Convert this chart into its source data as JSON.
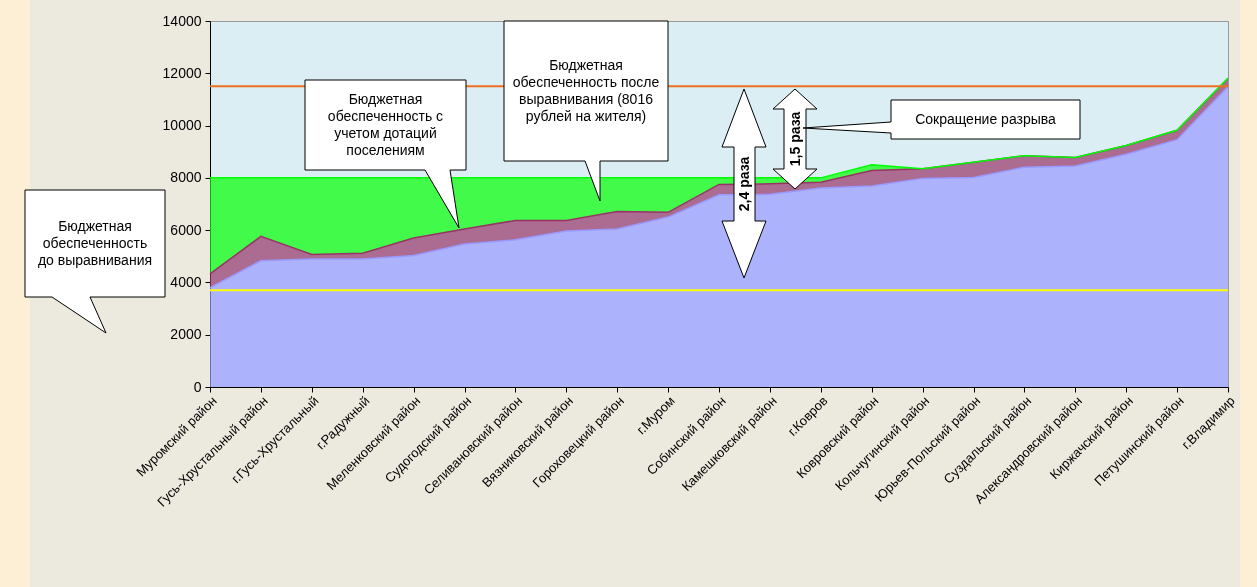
{
  "chart_data": {
    "type": "area",
    "stacked": true,
    "categories": [
      "Муромский район",
      "Гусь-Хрустальный район",
      "г.Гусь-Хрустальный",
      "г.Радужный",
      "Меленковский район",
      "Судогодский район",
      "Селивановский район",
      "Вязниковский район",
      "Гороховецкий район",
      "г.Муром",
      "Собинский район",
      "Камешковский район",
      "г.Ковров",
      "Ковровский район",
      "Кольчугинский район",
      "Юрьев-Польский район",
      "Суздальский район",
      "Александровский район",
      "Киржачский район",
      "Петушинский район",
      "г.Владимир"
    ],
    "series": [
      {
        "color": "#9999ff",
        "values": [
          3800,
          4830,
          4900,
          4900,
          5030,
          5470,
          5630,
          5970,
          6040,
          6500,
          7350,
          7370,
          7610,
          7690,
          7980,
          8010,
          8410,
          8450,
          8900,
          9460,
          11490
        ]
      },
      {
        "color": "#993366",
        "values": [
          530,
          930,
          170,
          220,
          670,
          570,
          740,
          400,
          670,
          180,
          400,
          400,
          220,
          590,
          370,
          590,
          440,
          330,
          340,
          360,
          320
        ]
      },
      {
        "color": "#00ff00",
        "values": [
          3670,
          2240,
          2930,
          2880,
          2300,
          1960,
          1630,
          1630,
          1290,
          1320,
          250,
          230,
          170,
          220,
          0,
          0,
          0,
          0,
          0,
          0,
          0
        ]
      }
    ],
    "ylim": [
      0,
      14000
    ],
    "yticks": [
      0,
      2000,
      4000,
      6000,
      8000,
      10000,
      12000,
      14000
    ],
    "ref_lines": [
      {
        "axis": "y",
        "value": 3700,
        "color": "#ffff00"
      },
      {
        "axis": "y",
        "value": 11500,
        "color": "#f07020"
      }
    ],
    "annotations": [
      "Бюджетная обеспеченность до выравнивания",
      "Бюджетная обеспеченность с учетом дотаций поселениям",
      "Бюджетная обеспеченность после выравнивания (8016 рублей на жителя)",
      "2,4 раза",
      "1,5 раза",
      "Сокращение разрыва"
    ]
  }
}
